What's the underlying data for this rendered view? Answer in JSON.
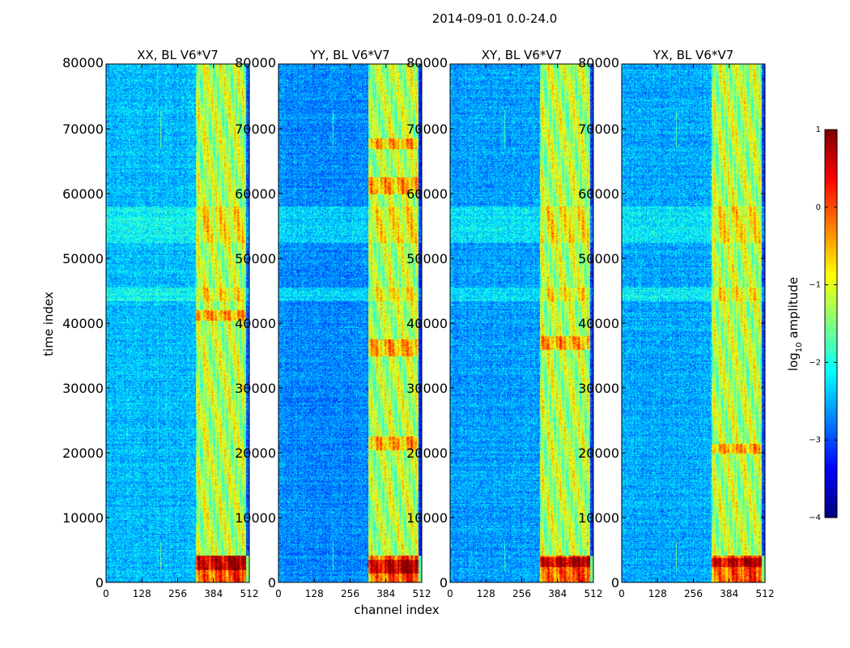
{
  "chart_data": {
    "type": "heatmap",
    "suptitle": "2014-09-01 0.0-24.0",
    "xlabel": "channel index",
    "ylabel": "time index",
    "xlim": [
      0,
      512
    ],
    "ylim": [
      0,
      80000
    ],
    "xticks": [
      0,
      128,
      256,
      384,
      512
    ],
    "xtick_labels": [
      "0",
      "128",
      "256",
      "384",
      "512"
    ],
    "yticks": [
      0,
      10000,
      20000,
      30000,
      40000,
      50000,
      60000,
      70000,
      80000
    ],
    "ytick_labels": [
      "0",
      "10000",
      "20000",
      "30000",
      "40000",
      "50000",
      "60000",
      "70000",
      "80000"
    ],
    "colormap": "jet",
    "color_range": [
      -4,
      1
    ],
    "colorbar": {
      "label_prefix": "log",
      "label_sub": "10",
      "label_suffix": " amplitude",
      "ticks": [
        -4,
        -3,
        -2,
        -1,
        0,
        1
      ],
      "tick_labels": [
        "−4",
        "−3",
        "−2",
        "−1",
        "0",
        "1"
      ]
    },
    "panels": [
      {
        "title": "XX, BL V6*V7",
        "base_level": -2.45,
        "bright_channel_band": [
          320,
          512
        ],
        "stripe_channels": [
          330,
          350,
          362,
          378,
          392,
          408,
          424,
          440,
          458,
          472,
          488
        ],
        "hot_time_bands": [
          [
            2000,
            4200
          ],
          [
            40500,
            42000
          ]
        ],
        "mid_time_bands": [
          [
            43500,
            45500
          ],
          [
            52500,
            58000
          ]
        ]
      },
      {
        "title": "YY, BL V6*V7",
        "base_level": -2.7,
        "bright_channel_band": [
          320,
          512
        ],
        "stripe_channels": [
          332,
          352,
          366,
          380,
          396,
          410,
          426,
          442,
          460,
          474,
          490
        ],
        "hot_time_bands": [
          [
            1500,
            3500
          ],
          [
            20500,
            22500
          ],
          [
            35000,
            37500
          ],
          [
            60000,
            62500
          ],
          [
            67000,
            68500
          ]
        ],
        "mid_time_bands": [
          [
            43500,
            45500
          ],
          [
            52500,
            58000
          ]
        ]
      },
      {
        "title": "XY, BL V6*V7",
        "base_level": -2.6,
        "bright_channel_band": [
          320,
          512
        ],
        "stripe_channels": [
          330,
          350,
          364,
          380,
          394,
          410,
          426,
          440,
          458,
          474,
          490
        ],
        "hot_time_bands": [
          [
            2500,
            4000
          ],
          [
            36000,
            38000
          ]
        ],
        "mid_time_bands": [
          [
            43500,
            45500
          ],
          [
            52500,
            58000
          ]
        ]
      },
      {
        "title": "YX, BL V6*V7",
        "base_level": -2.55,
        "bright_channel_band": [
          320,
          512
        ],
        "stripe_channels": [
          332,
          350,
          366,
          380,
          396,
          410,
          426,
          440,
          458,
          474,
          490
        ],
        "hot_time_bands": [
          [
            2500,
            3800
          ],
          [
            20000,
            21500
          ]
        ],
        "mid_time_bands": [
          [
            43500,
            45500
          ],
          [
            52500,
            58000
          ]
        ]
      }
    ]
  }
}
